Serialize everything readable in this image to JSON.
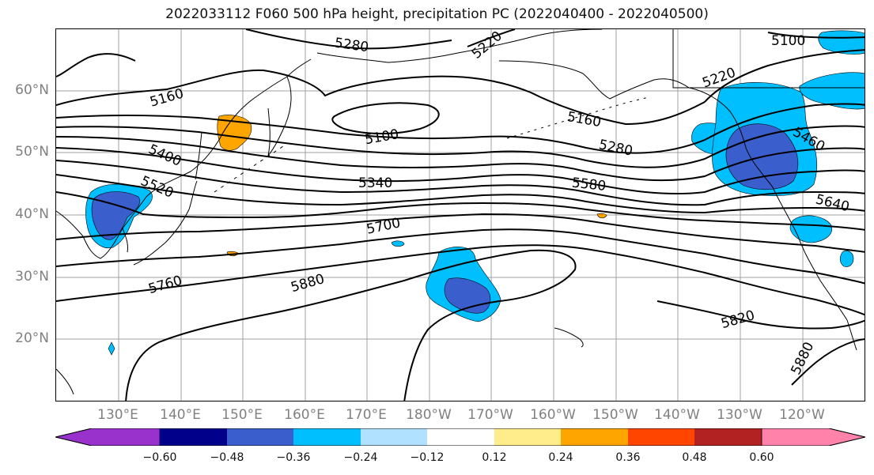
{
  "title": "2022033112 F060 500 hPa height, precipitation PC (2022040400 - 2022040500)",
  "lat_labels": [
    "60°N",
    "50°N",
    "40°N",
    "30°N",
    "20°N"
  ],
  "lon_labels": [
    "130°E",
    "140°E",
    "150°E",
    "160°E",
    "170°E",
    "180°W",
    "170°W",
    "160°W",
    "150°W",
    "140°W",
    "130°W",
    "120°W"
  ],
  "contour_labels": [
    "5280",
    "5160",
    "5100",
    "5400",
    "5520",
    "5340",
    "5700",
    "5760",
    "5880",
    "5160",
    "5280",
    "5580",
    "5220",
    "5100",
    "5460",
    "5640",
    "5820",
    "5880",
    "5220"
  ],
  "colorbar": {
    "tick_labels": [
      "−0.60",
      "−0.48",
      "−0.36",
      "−0.24",
      "−0.12",
      "0.12",
      "0.24",
      "0.36",
      "0.48",
      "0.60"
    ],
    "colors": [
      "#9932cc",
      "#00008b",
      "#3a5fcd",
      "#00bfff",
      "#b0e2ff",
      "#ffffff",
      "#ffec8b",
      "#ffa500",
      "#ff4500",
      "#b22222",
      "#ff82ab"
    ]
  },
  "colors": {
    "contour": "#000000",
    "coast": "#000000",
    "grid": "#a0a0a0",
    "axis_label": "#808080"
  }
}
